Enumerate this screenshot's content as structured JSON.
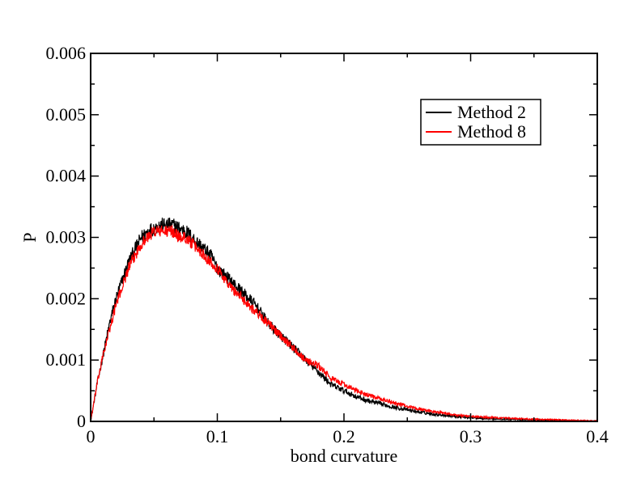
{
  "chart_data": {
    "type": "line",
    "title": "",
    "xlabel": "bond curvature",
    "ylabel": "P",
    "xlim": [
      0,
      0.4
    ],
    "ylim": [
      0,
      0.006
    ],
    "x_ticks": [
      0,
      0.1,
      0.2,
      0.3,
      0.4
    ],
    "x_tick_labels": [
      "0",
      "0.1",
      "0.2",
      "0.3",
      "0.4"
    ],
    "y_ticks": [
      0,
      0.001,
      0.002,
      0.003,
      0.004,
      0.005,
      0.006
    ],
    "y_tick_labels": [
      "0",
      "0.001",
      "0.002",
      "0.003",
      "0.004",
      "0.005",
      "0.006"
    ],
    "grid": false,
    "legend_position": "top-right",
    "series": [
      {
        "name": "Method 2",
        "color": "#000000",
        "noise": 0.00012,
        "x": [
          0,
          0.005,
          0.01,
          0.015,
          0.02,
          0.025,
          0.03,
          0.035,
          0.04,
          0.045,
          0.05,
          0.055,
          0.06,
          0.065,
          0.07,
          0.075,
          0.08,
          0.085,
          0.09,
          0.095,
          0.1,
          0.11,
          0.12,
          0.13,
          0.14,
          0.15,
          0.16,
          0.17,
          0.18,
          0.19,
          0.2,
          0.21,
          0.22,
          0.23,
          0.24,
          0.25,
          0.26,
          0.27,
          0.28,
          0.29,
          0.3,
          0.32,
          0.34,
          0.36,
          0.38,
          0.4
        ],
        "y": [
          0,
          0.0006,
          0.0011,
          0.0016,
          0.002,
          0.0023,
          0.0026,
          0.0028,
          0.003,
          0.0031,
          0.00315,
          0.0032,
          0.0032,
          0.0032,
          0.00315,
          0.0031,
          0.003,
          0.0029,
          0.0028,
          0.0027,
          0.0025,
          0.0023,
          0.0021,
          0.0019,
          0.0016,
          0.0014,
          0.0012,
          0.001,
          0.0008,
          0.0006,
          0.0005,
          0.0004,
          0.00033,
          0.00028,
          0.00023,
          0.00019,
          0.00015,
          0.00012,
          0.0001,
          8e-05,
          6e-05,
          4e-05,
          3e-05,
          2e-05,
          1e-05,
          5e-06
        ]
      },
      {
        "name": "Method 8",
        "color": "#ff0000",
        "noise": 0.0001,
        "x": [
          0,
          0.005,
          0.01,
          0.015,
          0.02,
          0.025,
          0.03,
          0.035,
          0.04,
          0.045,
          0.05,
          0.055,
          0.06,
          0.065,
          0.07,
          0.075,
          0.08,
          0.085,
          0.09,
          0.095,
          0.1,
          0.11,
          0.12,
          0.13,
          0.14,
          0.15,
          0.16,
          0.17,
          0.18,
          0.19,
          0.2,
          0.21,
          0.22,
          0.23,
          0.24,
          0.25,
          0.26,
          0.27,
          0.28,
          0.29,
          0.3,
          0.32,
          0.34,
          0.36,
          0.38,
          0.4
        ],
        "y": [
          0,
          0.0006,
          0.0011,
          0.0015,
          0.0019,
          0.0022,
          0.0025,
          0.0027,
          0.0029,
          0.003,
          0.0031,
          0.0031,
          0.0031,
          0.0031,
          0.003,
          0.003,
          0.0029,
          0.0028,
          0.0027,
          0.0026,
          0.0025,
          0.0022,
          0.002,
          0.0018,
          0.0016,
          0.0014,
          0.0012,
          0.001,
          0.0009,
          0.0007,
          0.0006,
          0.0005,
          0.00042,
          0.00036,
          0.0003,
          0.00025,
          0.0002,
          0.00016,
          0.00013,
          0.0001,
          8e-05,
          6e-05,
          4e-05,
          3e-05,
          2e-05,
          1e-05
        ]
      }
    ]
  }
}
